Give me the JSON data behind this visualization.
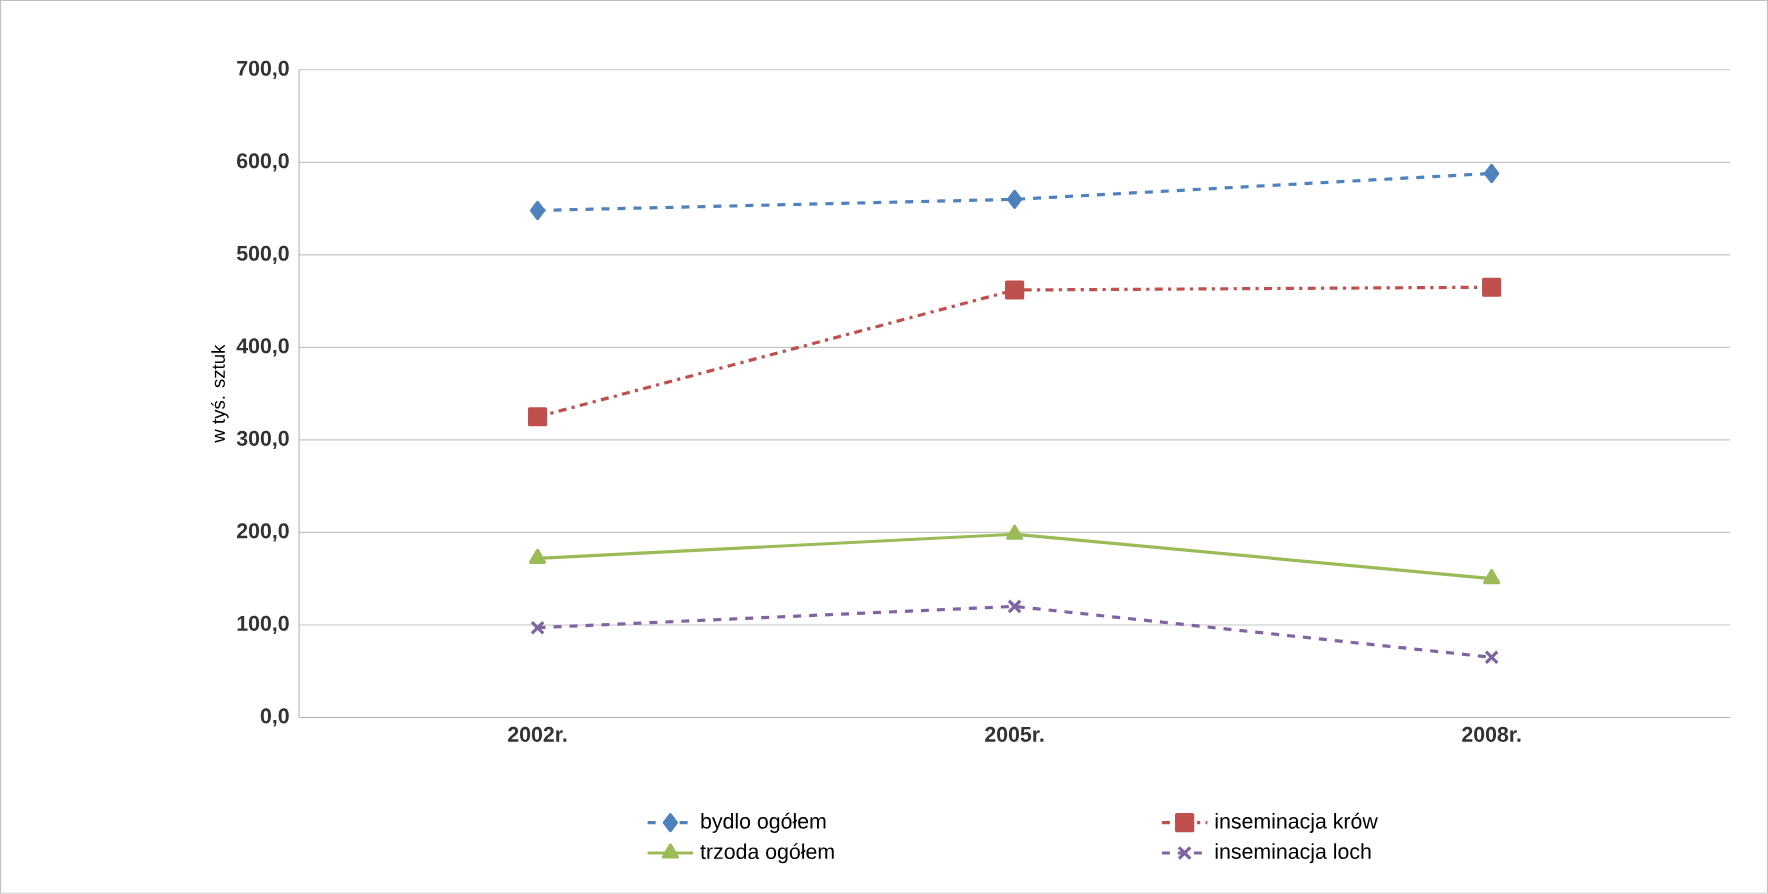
{
  "chart_data": {
    "type": "line",
    "ylabel": "w tyś. sztuk",
    "categories": [
      "2002r.",
      "2005r.",
      "2008r."
    ],
    "ylim": [
      0,
      700
    ],
    "yticks": [
      {
        "value": 0,
        "label": "0,0"
      },
      {
        "value": 100,
        "label": "100,0"
      },
      {
        "value": 200,
        "label": "200,0"
      },
      {
        "value": 300,
        "label": "300,0"
      },
      {
        "value": 400,
        "label": "400,0"
      },
      {
        "value": 500,
        "label": "500,0"
      },
      {
        "value": 600,
        "label": "600,0"
      },
      {
        "value": 700,
        "label": "700,0"
      }
    ],
    "grid": "y",
    "legend": "bottom",
    "series": [
      {
        "name": "bydlo ogółem",
        "color": "#4f81bd",
        "values": [
          548,
          560,
          588
        ],
        "marker": "diamond",
        "line_style": "dashed"
      },
      {
        "name": "inseminacja krów",
        "color": "#c0504d",
        "values": [
          325,
          462,
          465
        ],
        "marker": "square",
        "line_style": "dashdot"
      },
      {
        "name": "trzoda ogółem",
        "color": "#9bbb59",
        "values": [
          172,
          198,
          150
        ],
        "marker": "triangle",
        "line_style": "solid"
      },
      {
        "name": "inseminacja loch",
        "color": "#8064a2",
        "values": [
          97,
          120,
          65
        ],
        "marker": "cross",
        "line_style": "dashed"
      }
    ]
  }
}
